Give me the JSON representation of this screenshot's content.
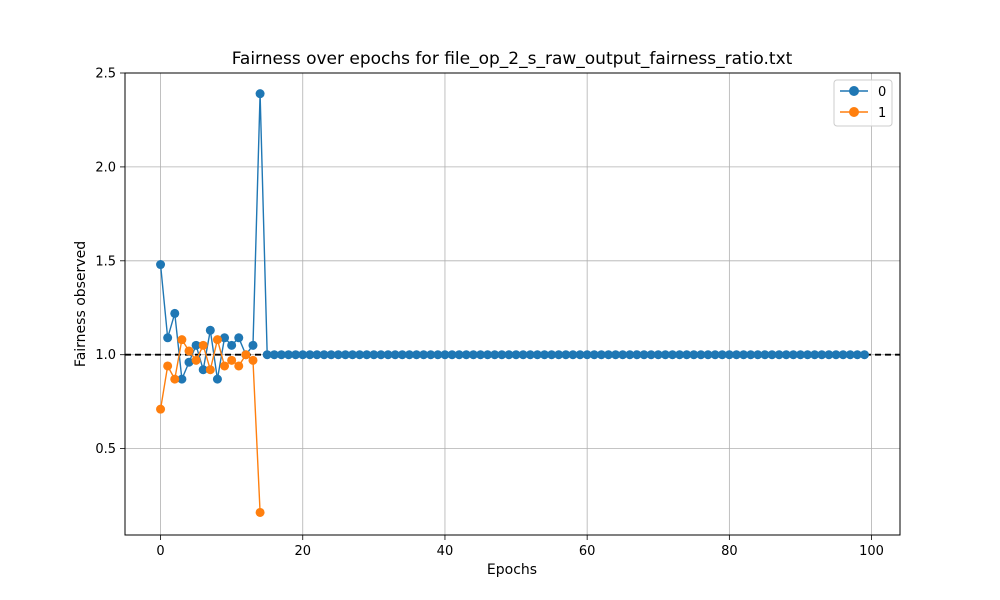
{
  "chart_data": {
    "type": "line",
    "title": "Fairness over epochs for file_op_2_s_raw_output_fairness_ratio.txt",
    "xlabel": "Epochs",
    "ylabel": "Fairness observed",
    "xlim": [
      -5,
      104
    ],
    "ylim": [
      0.04,
      2.5
    ],
    "xticks": [
      0,
      20,
      40,
      60,
      80,
      100
    ],
    "yticks": [
      0.5,
      1.0,
      1.5,
      2.0,
      2.5
    ],
    "ytick_labels": [
      "0.5",
      "1.0",
      "1.5",
      "2.0",
      "2.5"
    ],
    "grid": true,
    "reference_line": {
      "y": 1.0,
      "style": "dashed",
      "color": "#000000"
    },
    "legend": {
      "position": "top-right"
    },
    "series": [
      {
        "name": "0",
        "color": "#1f77b4",
        "x": [
          0,
          1,
          2,
          3,
          4,
          5,
          6,
          7,
          8,
          9,
          10,
          11,
          12,
          13,
          14,
          15,
          16,
          17,
          18,
          19,
          20,
          21,
          22,
          23,
          24,
          25,
          26,
          27,
          28,
          29,
          30,
          31,
          32,
          33,
          34,
          35,
          36,
          37,
          38,
          39,
          40,
          41,
          42,
          43,
          44,
          45,
          46,
          47,
          48,
          49,
          50,
          51,
          52,
          53,
          54,
          55,
          56,
          57,
          58,
          59,
          60,
          61,
          62,
          63,
          64,
          65,
          66,
          67,
          68,
          69,
          70,
          71,
          72,
          73,
          74,
          75,
          76,
          77,
          78,
          79,
          80,
          81,
          82,
          83,
          84,
          85,
          86,
          87,
          88,
          89,
          90,
          91,
          92,
          93,
          94,
          95,
          96,
          97,
          98,
          99
        ],
        "y": [
          1.48,
          1.09,
          1.22,
          0.87,
          0.96,
          1.05,
          0.92,
          1.13,
          0.87,
          1.09,
          1.05,
          1.09,
          1.0,
          1.05,
          2.39,
          1.0,
          1.0,
          1.0,
          1.0,
          1.0,
          1.0,
          1.0,
          1.0,
          1.0,
          1.0,
          1.0,
          1.0,
          1.0,
          1.0,
          1.0,
          1.0,
          1.0,
          1.0,
          1.0,
          1.0,
          1.0,
          1.0,
          1.0,
          1.0,
          1.0,
          1.0,
          1.0,
          1.0,
          1.0,
          1.0,
          1.0,
          1.0,
          1.0,
          1.0,
          1.0,
          1.0,
          1.0,
          1.0,
          1.0,
          1.0,
          1.0,
          1.0,
          1.0,
          1.0,
          1.0,
          1.0,
          1.0,
          1.0,
          1.0,
          1.0,
          1.0,
          1.0,
          1.0,
          1.0,
          1.0,
          1.0,
          1.0,
          1.0,
          1.0,
          1.0,
          1.0,
          1.0,
          1.0,
          1.0,
          1.0,
          1.0,
          1.0,
          1.0,
          1.0,
          1.0,
          1.0,
          1.0,
          1.0,
          1.0,
          1.0,
          1.0,
          1.0,
          1.0,
          1.0,
          1.0,
          1.0,
          1.0,
          1.0,
          1.0,
          1.0
        ]
      },
      {
        "name": "1",
        "color": "#ff7f0e",
        "x": [
          0,
          1,
          2,
          3,
          4,
          5,
          6,
          7,
          8,
          9,
          10,
          11,
          12,
          13,
          14
        ],
        "y": [
          0.71,
          0.94,
          0.87,
          1.08,
          1.02,
          0.97,
          1.05,
          0.92,
          1.08,
          0.94,
          0.97,
          0.94,
          1.0,
          0.97,
          0.16
        ]
      }
    ]
  }
}
